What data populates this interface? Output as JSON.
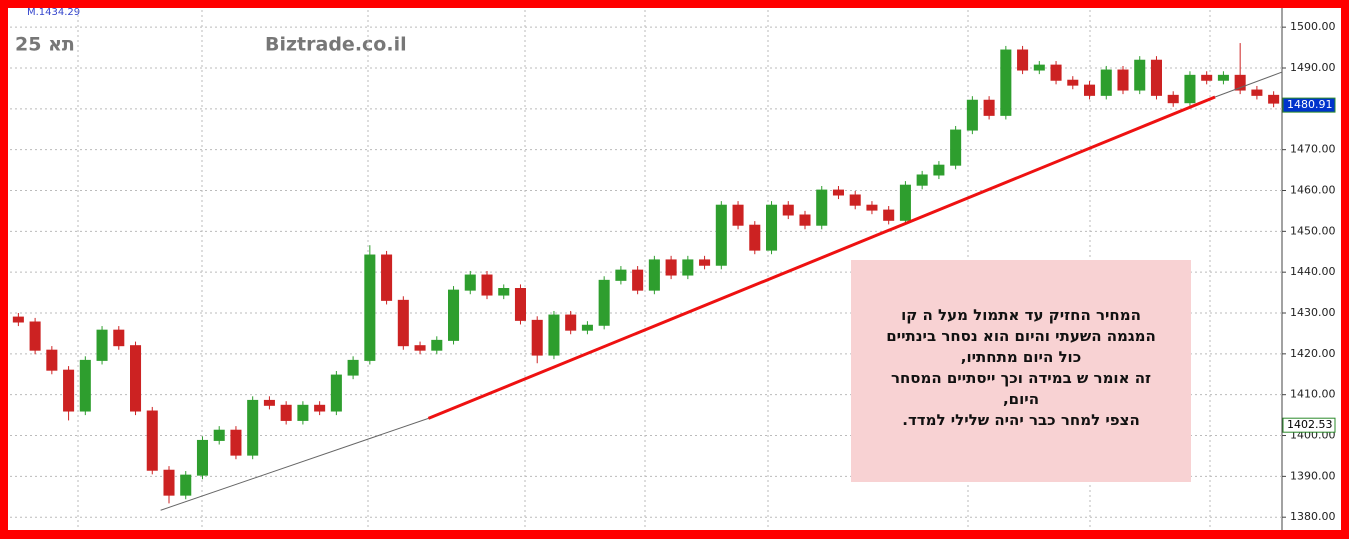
{
  "chart_data": {
    "type": "candlestick",
    "top_label": "M.1434.29",
    "symbol": "תא 25",
    "source": "Biztrade.co.il",
    "ylim": [
      1377.6,
      1504.2
    ],
    "yticks": [
      {
        "value": 1380,
        "label": "1380.00"
      },
      {
        "value": 1390,
        "label": "1390.00"
      },
      {
        "value": 1400,
        "label": "1400.00"
      },
      {
        "value": 1410,
        "label": "1410.00"
      },
      {
        "value": 1420,
        "label": "1420.00"
      },
      {
        "value": 1430,
        "label": "1430.00"
      },
      {
        "value": 1440,
        "label": "1440.00"
      },
      {
        "value": 1450,
        "label": "1450.00"
      },
      {
        "value": 1460,
        "label": "1460.00"
      },
      {
        "value": 1470,
        "label": "1470.00"
      },
      {
        "value": 1480,
        "label": "1480.00"
      },
      {
        "value": 1490,
        "label": "1490.00"
      },
      {
        "value": 1500,
        "label": "1500.00"
      }
    ],
    "grid": true,
    "up_color": "#2e9e2e",
    "down_color": "#cc2222",
    "open": [
      1429.0,
      1427.8,
      1420.9,
      1416.0,
      1406.0,
      1418.4,
      1425.8,
      1422.0,
      1406.0,
      1391.5,
      1385.4,
      1390.3,
      1398.8,
      1401.3,
      1395.2,
      1408.6,
      1407.4,
      1403.7,
      1407.4,
      1406.0,
      1414.8,
      1418.4,
      1444.2,
      1433.1,
      1422.0,
      1420.9,
      1423.3,
      1435.6,
      1439.3,
      1434.4,
      1436.0,
      1428.2,
      1419.7,
      1429.5,
      1425.8,
      1427.0,
      1438.0,
      1440.5,
      1435.6,
      1443.0,
      1439.3,
      1443.0,
      1441.7,
      1456.4,
      1451.5,
      1445.4,
      1456.4,
      1454.0,
      1451.5,
      1460.1,
      1458.9,
      1456.4,
      1455.2,
      1452.7,
      1461.3,
      1463.8,
      1466.2,
      1474.8,
      1482.1,
      1478.4,
      1494.4,
      1489.5,
      1490.7,
      1487.0,
      1485.8,
      1483.3,
      1489.5,
      1484.6,
      1491.9,
      1483.3,
      1481.5,
      1488.2,
      1487.0,
      1488.2,
      1484.6,
      1483.3
    ],
    "high": [
      1430.0,
      1428.8,
      1421.9,
      1417.0,
      1419.4,
      1426.8,
      1426.8,
      1423.0,
      1407.0,
      1392.5,
      1391.3,
      1399.8,
      1402.3,
      1402.3,
      1409.6,
      1409.6,
      1408.4,
      1408.4,
      1408.4,
      1415.8,
      1419.4,
      1446.6,
      1445.2,
      1434.1,
      1423.0,
      1424.3,
      1436.6,
      1440.3,
      1440.3,
      1437.0,
      1437.0,
      1429.2,
      1430.5,
      1430.5,
      1428.0,
      1439.0,
      1441.5,
      1441.5,
      1444.0,
      1444.0,
      1444.0,
      1444.0,
      1457.4,
      1457.4,
      1452.5,
      1457.4,
      1457.4,
      1455.0,
      1461.1,
      1461.1,
      1459.9,
      1457.4,
      1456.2,
      1462.3,
      1464.8,
      1467.2,
      1475.8,
      1483.1,
      1483.1,
      1495.4,
      1495.4,
      1491.7,
      1491.7,
      1488.0,
      1486.8,
      1490.5,
      1490.5,
      1492.9,
      1492.9,
      1484.3,
      1489.2,
      1489.2,
      1489.2,
      1496.1,
      1485.6,
      1484.3
    ],
    "low": [
      1426.8,
      1419.9,
      1415.0,
      1403.7,
      1405.0,
      1417.4,
      1421.0,
      1405.0,
      1390.5,
      1383.4,
      1384.4,
      1389.3,
      1397.8,
      1394.2,
      1394.2,
      1406.4,
      1402.7,
      1402.7,
      1405.0,
      1405.0,
      1413.8,
      1417.4,
      1432.1,
      1421.0,
      1419.9,
      1419.9,
      1422.3,
      1434.6,
      1433.4,
      1433.4,
      1427.2,
      1417.7,
      1418.7,
      1424.8,
      1424.8,
      1426.0,
      1437.0,
      1434.6,
      1434.6,
      1438.3,
      1438.3,
      1440.7,
      1440.7,
      1450.5,
      1444.4,
      1444.4,
      1453.0,
      1450.5,
      1450.5,
      1457.9,
      1455.4,
      1454.2,
      1451.7,
      1451.7,
      1460.3,
      1462.8,
      1465.2,
      1473.8,
      1477.4,
      1477.4,
      1488.5,
      1488.5,
      1486.0,
      1484.8,
      1482.3,
      1482.3,
      1483.6,
      1483.6,
      1482.3,
      1480.5,
      1480.5,
      1486.0,
      1486.0,
      1483.6,
      1482.3,
      1480.4
    ],
    "close": [
      1427.8,
      1420.9,
      1416.0,
      1406.0,
      1418.4,
      1425.8,
      1422.0,
      1406.0,
      1391.5,
      1385.4,
      1390.3,
      1398.8,
      1401.3,
      1395.2,
      1408.6,
      1407.4,
      1403.7,
      1407.4,
      1406.0,
      1414.8,
      1418.4,
      1444.2,
      1433.1,
      1422.0,
      1420.9,
      1423.3,
      1435.6,
      1439.3,
      1434.4,
      1436.0,
      1428.2,
      1419.7,
      1429.5,
      1425.8,
      1427.0,
      1438.0,
      1440.5,
      1435.6,
      1443.0,
      1439.3,
      1443.0,
      1441.7,
      1456.4,
      1451.5,
      1445.4,
      1456.4,
      1454.0,
      1451.5,
      1460.1,
      1458.9,
      1456.4,
      1455.2,
      1452.7,
      1461.3,
      1463.8,
      1466.2,
      1474.8,
      1482.1,
      1478.4,
      1494.4,
      1489.5,
      1490.7,
      1487.0,
      1485.8,
      1483.3,
      1489.5,
      1484.6,
      1491.9,
      1483.3,
      1481.5,
      1488.2,
      1487.0,
      1488.2,
      1484.6,
      1483.3,
      1481.4
    ],
    "trendlines": [
      {
        "color": "#666666",
        "x": [
          8.5,
          24.5
        ],
        "y": [
          1381.7,
          1404.2
        ]
      },
      {
        "color": "#ee1111",
        "x": [
          24.5,
          71.5
        ],
        "y": [
          1404.2,
          1482.9
        ]
      },
      {
        "color": "#666666",
        "x": [
          71.5,
          75.5
        ],
        "y": [
          1482.9,
          1489.0
        ]
      }
    ],
    "price_tags": [
      {
        "value": 1480.91,
        "color": "#0033cc",
        "text_color": "#ffffff"
      },
      {
        "value": 1402.53,
        "color": "#ffffff",
        "text_color": "#000000"
      }
    ],
    "annotation": [
      "המחיר החזיק עד אתמול מעל ה קו",
      "המגמה השעתי והיום הוא נסחר בינתיים",
      "כול היום מתחתיו,",
      "זה אומר ש במידה וכך ייסתיים המסחר",
      "היום,",
      "הצפי למחר כבר יהיה שלילי למדד."
    ]
  }
}
